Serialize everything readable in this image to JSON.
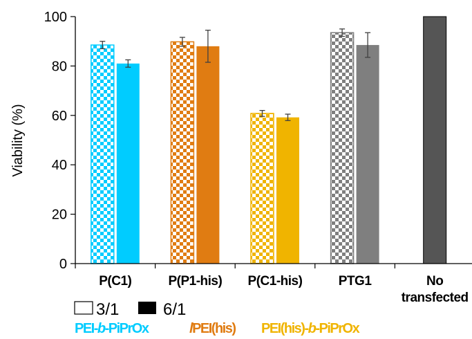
{
  "chart_data": {
    "type": "bar",
    "ylabel": "Viability (%)",
    "ylim": [
      0,
      100
    ],
    "yticks": [
      0,
      20,
      40,
      60,
      80,
      100
    ],
    "categories": [
      "P(C1)",
      "P(P1-his)",
      "P(C1-his)",
      "PTG1",
      "No transfected"
    ],
    "series": [
      {
        "name": "3/1",
        "values": [
          88.5,
          89.8,
          60.8,
          93.5,
          null
        ],
        "errors": [
          1.5,
          1.8,
          1.2,
          1.5,
          null
        ]
      },
      {
        "name": "6/1",
        "values": [
          81.0,
          88.0,
          59.2,
          88.5,
          100
        ],
        "errors": [
          1.5,
          6.5,
          1.3,
          5.0,
          null
        ]
      }
    ],
    "bar_colors": [
      "#00ccff",
      "#e07c12",
      "#f0b400",
      "#7f7f7f",
      "#555555"
    ],
    "legend_position": "bottom-left",
    "grid": false
  },
  "annotations": [
    {
      "text_parts": [
        {
          "t": "PEI-",
          "style": "normal"
        },
        {
          "t": "b",
          "style": "italic"
        },
        {
          "t": "-PiPrOx",
          "style": "normal"
        }
      ],
      "color": "#00ccff"
    },
    {
      "text_parts": [
        {
          "t": "l",
          "style": "italic"
        },
        {
          "t": "PEI(his)",
          "style": "normal"
        }
      ],
      "color": "#e07c12"
    },
    {
      "text_parts": [
        {
          "t": "PEI(his)-",
          "style": "normal"
        },
        {
          "t": "b",
          "style": "italic"
        },
        {
          "t": "-PiPrOx",
          "style": "normal"
        }
      ],
      "color": "#f0b400"
    }
  ]
}
